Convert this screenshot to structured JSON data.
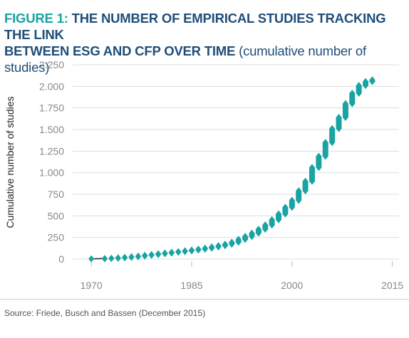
{
  "header": {
    "figure_label": "FIGURE 1:",
    "title_line1": "THE NUMBER OF EMPIRICAL STUDIES TRACKING THE LINK",
    "title_line2": "BETWEEN ESG AND CFP OVER TIME",
    "subtitle": "(cumulative number of studies)"
  },
  "footer": {
    "source": "Source: Friede, Busch and Bassen (December 2015)"
  },
  "colors": {
    "marker": "#1aa3a3",
    "title_blue": "#1f4e79",
    "grid": "#dddddd",
    "axis_text": "#888888"
  },
  "chart_data": {
    "type": "scatter",
    "title": "THE NUMBER OF EMPIRICAL STUDIES TRACKING THE LINK BETWEEN ESG AND CFP OVER TIME",
    "subtitle": "(cumulative number of studies)",
    "xlabel": "",
    "ylabel": "Cumulative number of studies",
    "xlim": [
      1967,
      2016
    ],
    "ylim": [
      0,
      2250
    ],
    "x_ticks": [
      1970,
      1985,
      2000,
      2015
    ],
    "x_tick_labels": [
      "1970",
      "1985",
      "2000",
      "2015"
    ],
    "y_ticks": [
      0,
      250,
      500,
      750,
      1000,
      1250,
      1500,
      1750,
      2000,
      2250
    ],
    "y_tick_labels": [
      "0",
      "250",
      "500",
      "750",
      "1.000",
      "1.250",
      "1.500",
      "1.750",
      "2.000",
      "2.250"
    ],
    "grid": "horizontal",
    "legend": "none",
    "series": [
      {
        "name": "",
        "marker": "diamond",
        "points": [
          [
            1970,
            2
          ],
          [
            1972,
            6
          ],
          [
            1973,
            9
          ],
          [
            1974,
            14
          ],
          [
            1975,
            20
          ],
          [
            1976,
            27
          ],
          [
            1977,
            34
          ],
          [
            1978,
            43
          ],
          [
            1979,
            52
          ],
          [
            1980,
            61
          ],
          [
            1981,
            69
          ],
          [
            1982,
            78
          ],
          [
            1983,
            86
          ],
          [
            1984,
            95
          ],
          [
            1985,
            104
          ],
          [
            1986,
            114
          ],
          [
            1987,
            126
          ],
          [
            1988,
            140
          ],
          [
            1989,
            155
          ],
          [
            1990,
            172
          ],
          [
            1991,
            195
          ],
          [
            1992,
            228
          ],
          [
            1993,
            262
          ],
          [
            1994,
            300
          ],
          [
            1995,
            345
          ],
          [
            1996,
            395
          ],
          [
            1997,
            455
          ],
          [
            1998,
            522
          ],
          [
            1999,
            600
          ],
          [
            2000,
            680
          ],
          [
            2001,
            790
          ],
          [
            2002,
            900
          ],
          [
            2003,
            1060
          ],
          [
            2004,
            1190
          ],
          [
            2005,
            1350
          ],
          [
            2006,
            1510
          ],
          [
            2007,
            1640
          ],
          [
            2008,
            1800
          ],
          [
            2009,
            1920
          ],
          [
            2010,
            2010
          ],
          [
            2011,
            2055
          ],
          [
            2012,
            2075
          ]
        ]
      }
    ]
  }
}
